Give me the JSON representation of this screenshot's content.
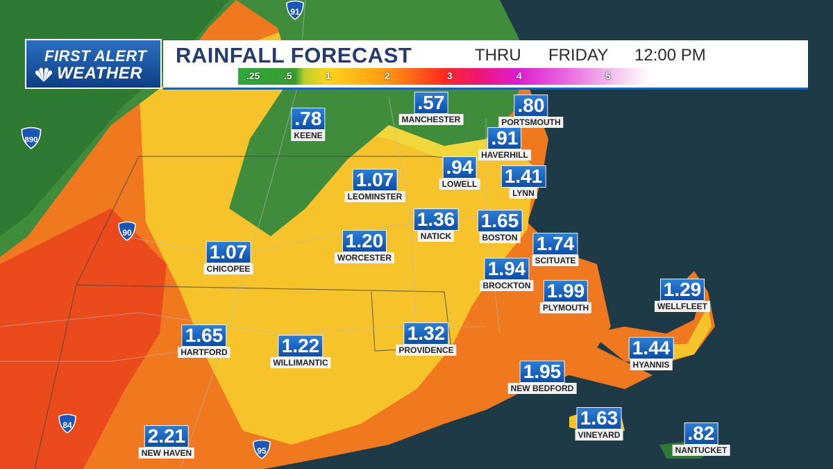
{
  "header": {
    "logo_line1": "FIRST ALERT",
    "logo_line2": "WEATHER",
    "title": "RAINFALL FORECAST",
    "thru": "THRU",
    "day": "FRIDAY",
    "time": "12:00 PM"
  },
  "scale": {
    "ticks": [
      ".25",
      ".5",
      "1",
      "2",
      "3",
      "4",
      "5"
    ]
  },
  "colors": {
    "ocean": "#1d3a46",
    "label_blue": "#1a5fb4",
    "heavy": "#f06a18",
    "moderate": "#f6c32a",
    "light": "#3f8c3c"
  },
  "cities": [
    {
      "name": "KEENE",
      "value": ".78"
    },
    {
      "name": "MANCHESTER",
      "value": ".57"
    },
    {
      "name": "PORTSMOUTH",
      "value": ".80"
    },
    {
      "name": "HAVERHILL",
      "value": ".91"
    },
    {
      "name": "LOWELL",
      "value": ".94"
    },
    {
      "name": "LYNN",
      "value": "1.41"
    },
    {
      "name": "LEOMINSTER",
      "value": "1.07"
    },
    {
      "name": "NATICK",
      "value": "1.36"
    },
    {
      "name": "BOSTON",
      "value": "1.65"
    },
    {
      "name": "CHICOPEE",
      "value": "1.07"
    },
    {
      "name": "WORCESTER",
      "value": "1.20"
    },
    {
      "name": "SCITUATE",
      "value": "1.74"
    },
    {
      "name": "BROCKTON",
      "value": "1.94"
    },
    {
      "name": "PLYMOUTH",
      "value": "1.99"
    },
    {
      "name": "WELLFLEET",
      "value": "1.29"
    },
    {
      "name": "HARTFORD",
      "value": "1.65"
    },
    {
      "name": "WILLIMANTIC",
      "value": "1.22"
    },
    {
      "name": "PROVIDENCE",
      "value": "1.32"
    },
    {
      "name": "HYANNIS",
      "value": "1.44"
    },
    {
      "name": "NEW BEDFORD",
      "value": "1.95"
    },
    {
      "name": "VINEYARD",
      "value": "1.63"
    },
    {
      "name": "NANTUCKET",
      "value": ".82"
    },
    {
      "name": "NEW HAVEN",
      "value": "2.21"
    }
  ],
  "highways": [
    "91",
    "890",
    "90",
    "84",
    "95"
  ]
}
